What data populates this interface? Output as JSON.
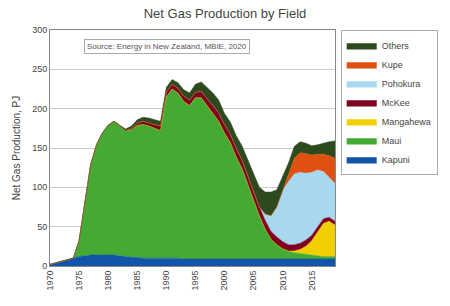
{
  "chart_data": {
    "type": "area",
    "stacked": true,
    "title": "Net Gas Production by Field",
    "ylabel": "Net Gas Production, PJ",
    "annotations": [
      "Source: Energy in New Zealand, MBIE, 2020"
    ],
    "x": [
      1970,
      1971,
      1972,
      1973,
      1974,
      1975,
      1976,
      1977,
      1978,
      1979,
      1980,
      1981,
      1982,
      1983,
      1984,
      1985,
      1986,
      1987,
      1988,
      1989,
      1990,
      1991,
      1992,
      1993,
      1994,
      1995,
      1996,
      1997,
      1998,
      1999,
      2000,
      2001,
      2002,
      2003,
      2004,
      2005,
      2006,
      2007,
      2008,
      2009,
      2010,
      2011,
      2012,
      2013,
      2014,
      2015,
      2016,
      2017,
      2018,
      2019
    ],
    "series": [
      {
        "name": "Kapuni",
        "color": "#1155aa",
        "values": [
          2,
          4,
          6,
          8,
          10,
          12,
          13,
          14,
          14,
          14,
          14,
          14,
          13,
          12,
          11,
          11,
          10,
          10,
          10,
          10,
          10,
          10,
          10,
          9,
          9,
          9,
          9,
          9,
          9,
          9,
          9,
          9,
          9,
          9,
          9,
          9,
          9,
          9,
          9,
          9,
          9,
          9,
          9,
          9,
          9,
          9,
          9,
          9,
          9,
          9
        ]
      },
      {
        "name": "Maui",
        "color": "#44aa33",
        "values": [
          0,
          0,
          0,
          0,
          0,
          20,
          65,
          115,
          140,
          155,
          165,
          170,
          165,
          160,
          162,
          168,
          170,
          168,
          165,
          162,
          205,
          215,
          210,
          200,
          195,
          205,
          205,
          195,
          185,
          175,
          160,
          148,
          130,
          115,
          95,
          75,
          55,
          38,
          25,
          18,
          13,
          10,
          8,
          7,
          6,
          5,
          4,
          3,
          3,
          3
        ]
      },
      {
        "name": "Mangahewa",
        "color": "#f0d000",
        "values": [
          0,
          0,
          0,
          0,
          0,
          0,
          0,
          0,
          0,
          0,
          0,
          0,
          0,
          0,
          0,
          0,
          0,
          0,
          0,
          0,
          0,
          0,
          0,
          0,
          0,
          0,
          0,
          0,
          0,
          0,
          0,
          0,
          0,
          0,
          0,
          0,
          0,
          0,
          0,
          0,
          0,
          0,
          2,
          5,
          10,
          18,
          30,
          42,
          45,
          40
        ]
      },
      {
        "name": "McKee",
        "color": "#800020",
        "values": [
          0,
          0,
          0,
          0,
          0,
          0,
          0,
          0,
          0,
          0,
          0,
          0,
          0,
          0,
          2,
          3,
          4,
          4,
          5,
          6,
          6,
          6,
          6,
          7,
          7,
          7,
          8,
          9,
          10,
          11,
          11,
          11,
          11,
          11,
          11,
          11,
          11,
          11,
          10,
          10,
          9,
          8,
          8,
          8,
          8,
          7,
          7,
          6,
          5,
          5
        ]
      },
      {
        "name": "Pohokura",
        "color": "#a8d8f0",
        "values": [
          0,
          0,
          0,
          0,
          0,
          0,
          0,
          0,
          0,
          0,
          0,
          0,
          0,
          0,
          0,
          0,
          0,
          0,
          0,
          0,
          0,
          0,
          0,
          0,
          0,
          0,
          0,
          0,
          0,
          0,
          0,
          0,
          0,
          0,
          0,
          0,
          0,
          8,
          20,
          38,
          65,
          80,
          90,
          90,
          85,
          80,
          72,
          60,
          50,
          48
        ]
      },
      {
        "name": "Kupe",
        "color": "#e05010",
        "values": [
          0,
          0,
          0,
          0,
          0,
          0,
          0,
          0,
          0,
          0,
          0,
          0,
          0,
          0,
          0,
          0,
          0,
          0,
          0,
          0,
          0,
          0,
          0,
          0,
          0,
          0,
          0,
          0,
          0,
          0,
          0,
          0,
          0,
          0,
          0,
          0,
          0,
          0,
          0,
          0,
          0,
          8,
          20,
          25,
          25,
          22,
          20,
          22,
          28,
          32
        ]
      },
      {
        "name": "Others",
        "color": "#2d4a1e",
        "values": [
          0,
          0,
          0,
          0,
          0,
          0,
          0,
          0,
          0,
          0,
          0,
          0,
          1,
          2,
          3,
          4,
          5,
          6,
          6,
          6,
          6,
          6,
          7,
          8,
          9,
          10,
          12,
          14,
          16,
          16,
          14,
          15,
          16,
          18,
          20,
          22,
          25,
          28,
          30,
          22,
          18,
          16,
          15,
          14,
          13,
          12,
          12,
          14,
          18,
          22
        ]
      }
    ],
    "xlim": [
      1970,
      2019
    ],
    "xticks": [
      1970,
      1975,
      1980,
      1985,
      1990,
      1995,
      2000,
      2005,
      2010,
      2015
    ],
    "ylim": [
      0,
      300
    ],
    "yticks": [
      0,
      50,
      100,
      150,
      200,
      250,
      300
    ],
    "grid": true,
    "legend": "upper right"
  }
}
